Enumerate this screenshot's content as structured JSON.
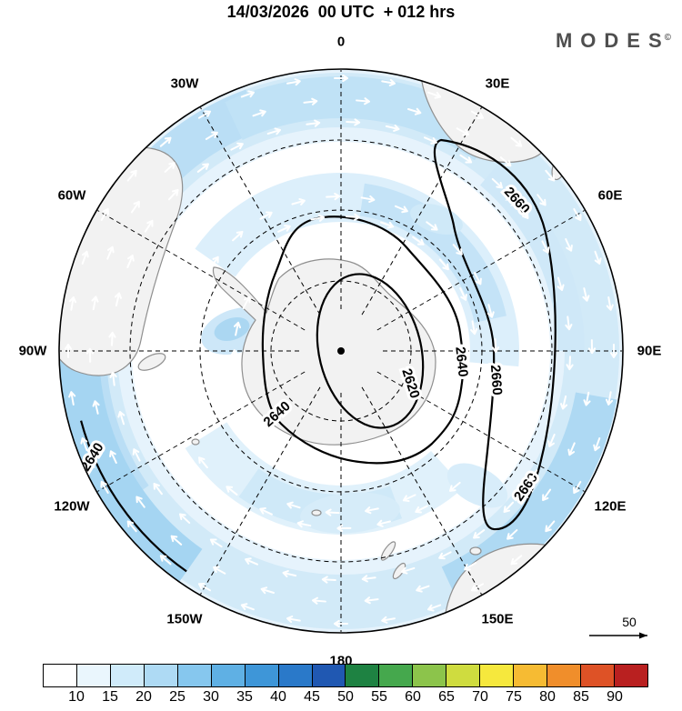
{
  "header": {
    "title": "14/03/2026  00 UTC  + 012 hrs",
    "brand": "MODES",
    "brand_mark": "©"
  },
  "map": {
    "lon_labels": [
      "0",
      "30E",
      "60E",
      "90E",
      "120E",
      "150E",
      "180",
      "150W",
      "120W",
      "90W",
      "60W",
      "30W"
    ],
    "contours": {
      "low": "2620",
      "mid": "2640",
      "high": "2660"
    }
  },
  "scale": {
    "value": "50"
  },
  "colorbar": {
    "labels": [
      "10",
      "15",
      "20",
      "25",
      "30",
      "35",
      "40",
      "45",
      "50",
      "55",
      "60",
      "65",
      "70",
      "75",
      "80",
      "85",
      "90"
    ],
    "colors": [
      "#ffffff",
      "#eaf6fd",
      "#d0ebfa",
      "#aedaf4",
      "#86c7ee",
      "#5fb0e4",
      "#3e96d8",
      "#2a79c9",
      "#2058b2",
      "#1e8242",
      "#45a84d",
      "#8cc44b",
      "#cfdc3f",
      "#f6e83d",
      "#f6bb33",
      "#f08e2b",
      "#de5226",
      "#b92020"
    ]
  },
  "chart_data": {
    "type": "heatmap",
    "title": "14/03/2026 00 UTC + 012 hrs",
    "projection": "south_polar_stereographic",
    "longitude_ticks": [
      "0",
      "30E",
      "60E",
      "90E",
      "120E",
      "150E",
      "180",
      "150W",
      "120W",
      "90W",
      "60W",
      "30W"
    ],
    "contours": {
      "levels": [
        2620,
        2640,
        2660
      ]
    },
    "shading": {
      "thresholds": [
        10,
        15,
        20,
        25,
        30,
        35,
        40,
        45,
        50,
        55,
        60,
        65,
        70,
        75,
        80,
        85,
        90
      ],
      "colors": [
        "#ffffff",
        "#eaf6fd",
        "#d0ebfa",
        "#aedaf4",
        "#86c7ee",
        "#5fb0e4",
        "#3e96d8",
        "#2a79c9",
        "#2058b2",
        "#1e8242",
        "#45a84d",
        "#8cc44b",
        "#cfdc3f",
        "#f6e83d",
        "#f6bb33",
        "#f08e2b",
        "#de5226",
        "#b92020"
      ]
    },
    "wind_reference_arrow": 50,
    "legend_position": "bottom"
  }
}
